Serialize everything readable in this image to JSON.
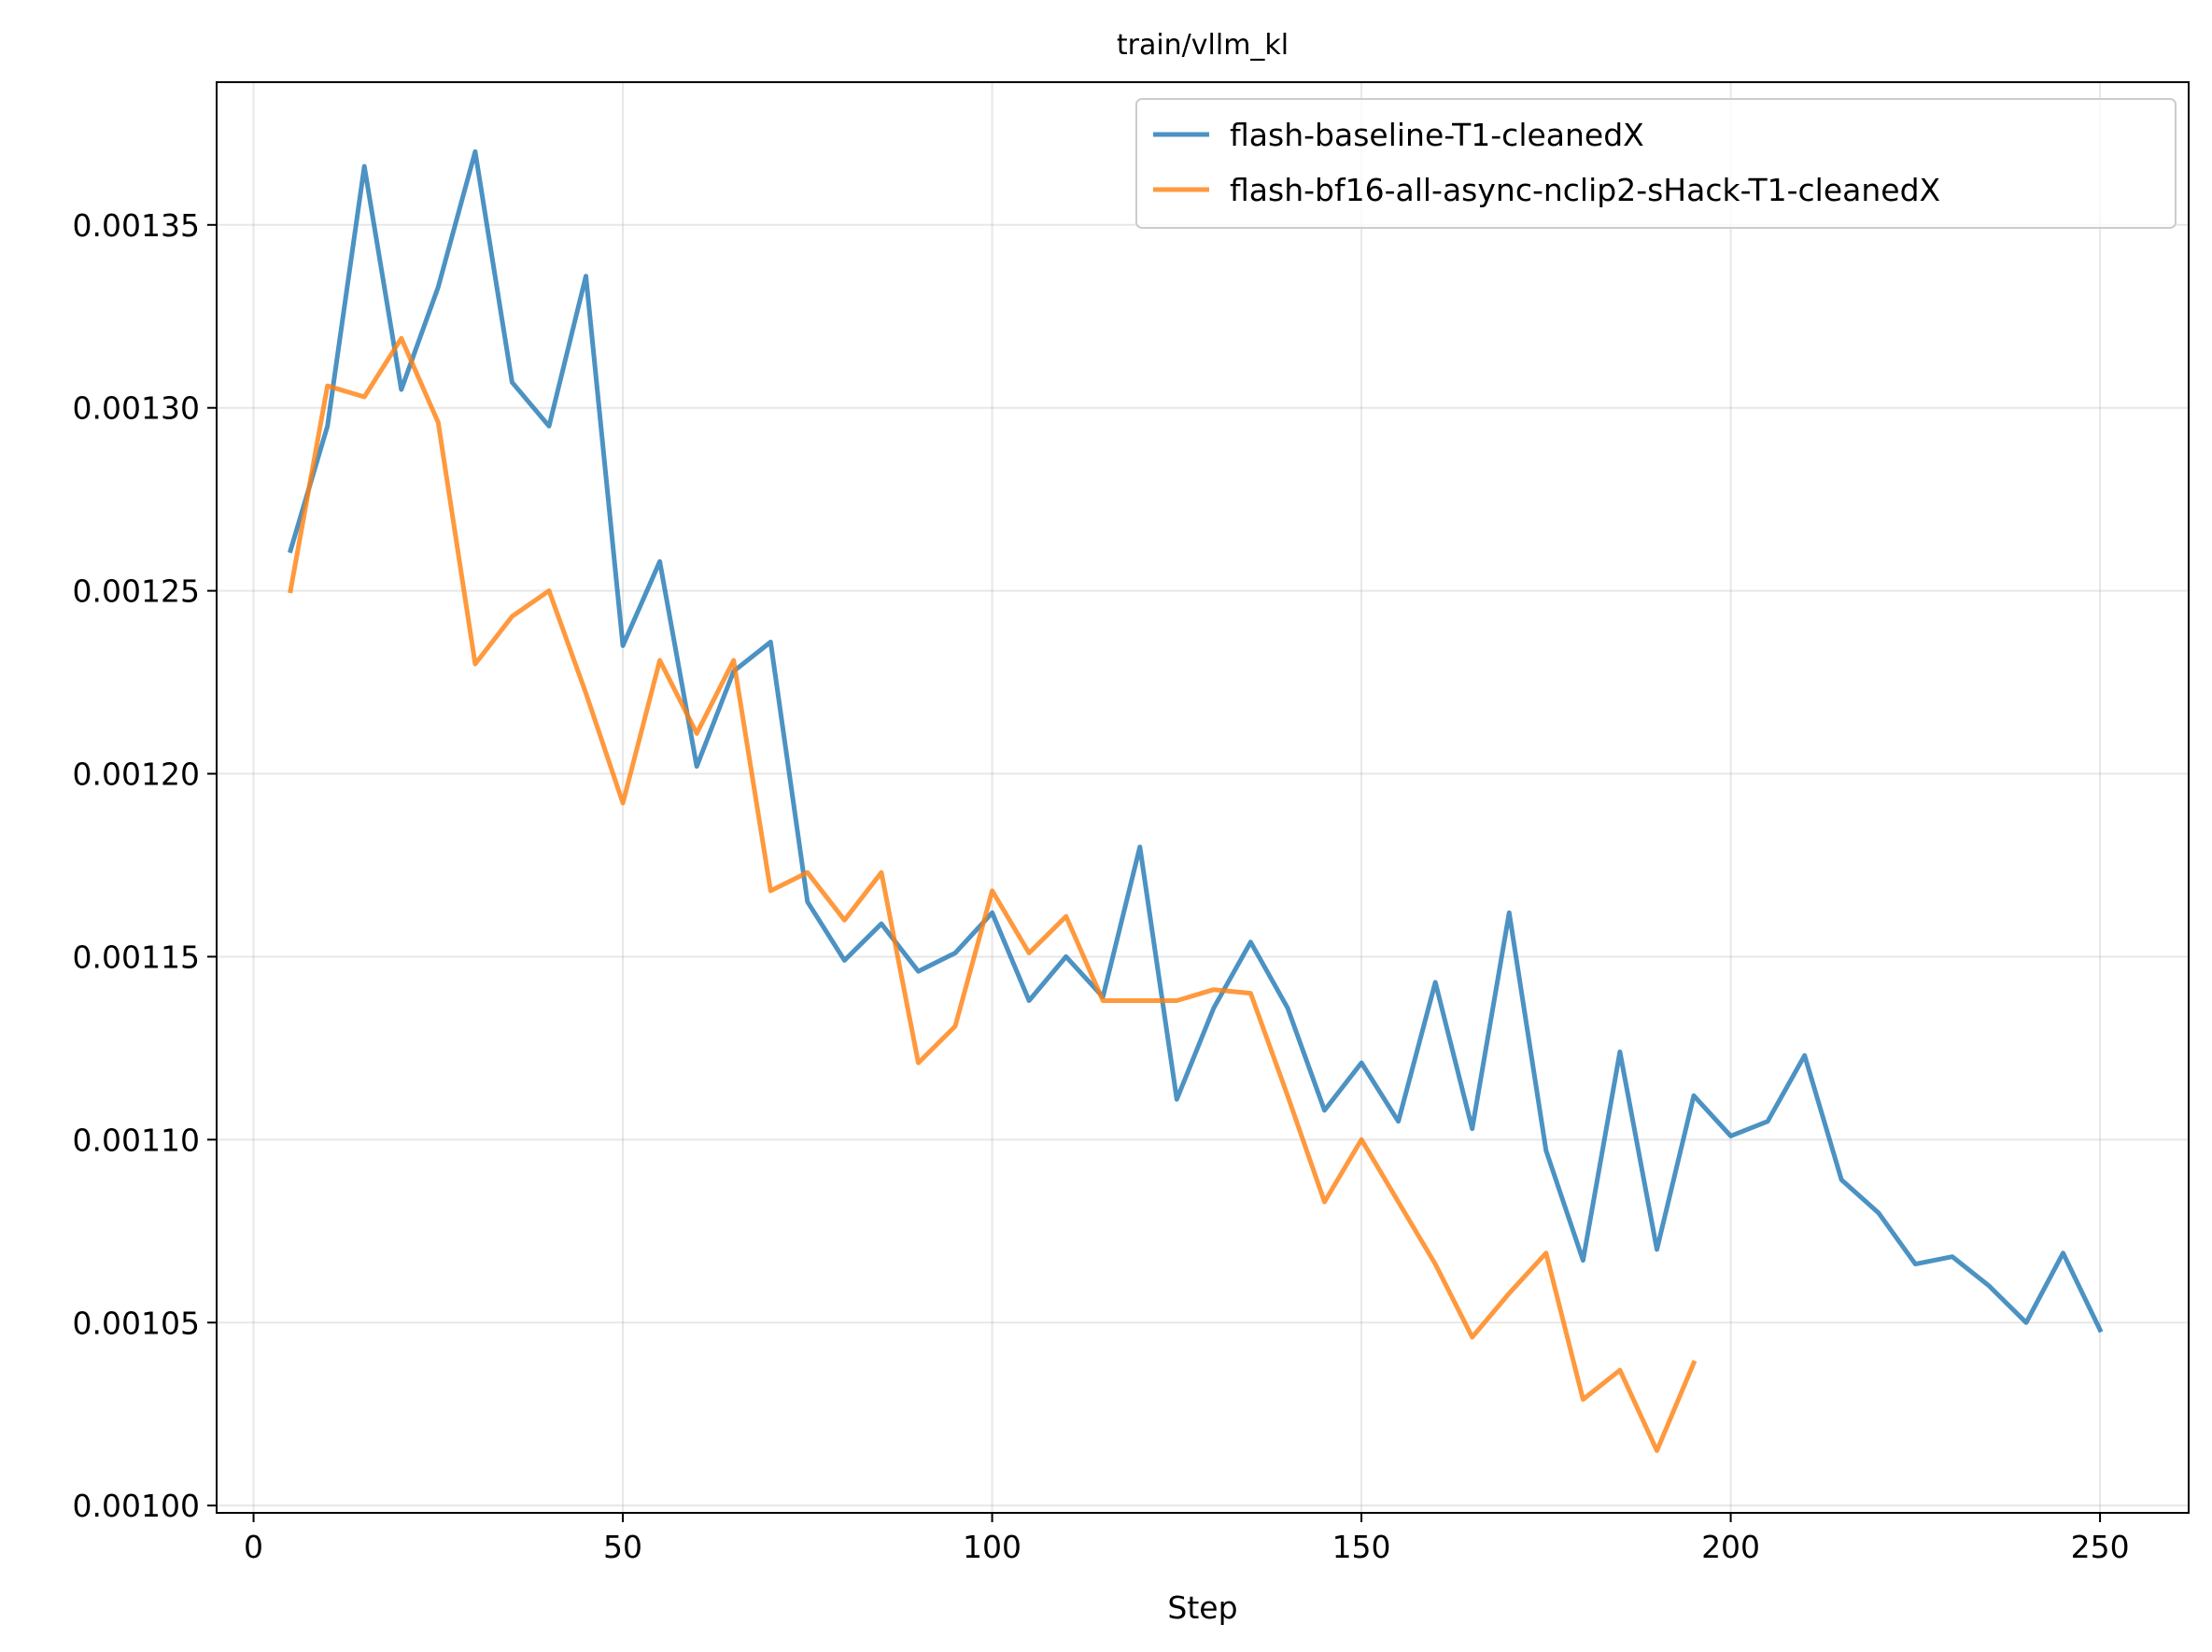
{
  "chart_data": {
    "type": "line",
    "title": "train/vllm_kl",
    "xlabel": "Step",
    "ylabel": "",
    "xlim": [
      -5,
      262
    ],
    "ylim": [
      0.000998,
      0.001389
    ],
    "xticks": [
      0,
      50,
      100,
      150,
      200,
      250
    ],
    "xtick_labels": [
      "0",
      "50",
      "100",
      "150",
      "200",
      "250"
    ],
    "yticks": [
      0.001,
      0.00105,
      0.0011,
      0.00115,
      0.0012,
      0.00125,
      0.0013,
      0.00135
    ],
    "ytick_labels": [
      "0.00100",
      "0.00105",
      "0.00110",
      "0.00115",
      "0.00120",
      "0.00125",
      "0.00130",
      "0.00135"
    ],
    "grid": true,
    "legend_position": "upper right",
    "series": [
      {
        "name": "flash-baseline-T1-cleanedX",
        "color": "#1f77b4",
        "x": [
          5,
          10,
          15,
          20,
          25,
          30,
          35,
          40,
          45,
          50,
          55,
          60,
          65,
          70,
          75,
          80,
          85,
          90,
          95,
          100,
          105,
          110,
          115,
          120,
          125,
          130,
          135,
          140,
          145,
          150,
          155,
          160,
          165,
          170,
          175,
          180,
          185,
          190,
          195,
          200,
          205,
          210,
          215,
          220,
          225,
          230,
          235,
          240,
          245,
          250
        ],
        "y": [
          0.001261,
          0.001295,
          0.001366,
          0.001305,
          0.001333,
          0.00137,
          0.001307,
          0.001295,
          0.001336,
          0.001235,
          0.001258,
          0.001202,
          0.001228,
          0.001236,
          0.001165,
          0.001149,
          0.001159,
          0.001146,
          0.001151,
          0.001162,
          0.001138,
          0.00115,
          0.001139,
          0.00118,
          0.001111,
          0.001136,
          0.001154,
          0.001136,
          0.001108,
          0.001121,
          0.001105,
          0.001143,
          0.001103,
          0.001162,
          0.001097,
          0.001067,
          0.001124,
          0.00107,
          0.001112,
          0.001101,
          0.001105,
          0.001123,
          0.001089,
          0.00108,
          0.001066,
          0.001068,
          0.00106,
          0.00105,
          0.001069,
          0.001048
        ]
      },
      {
        "name": "flash-bf16-all-async-nclip2-sHack-T1-cleanedX",
        "color": "#ff7f0e",
        "x": [
          5,
          10,
          15,
          20,
          25,
          30,
          35,
          40,
          45,
          50,
          55,
          60,
          65,
          70,
          75,
          80,
          85,
          90,
          95,
          100,
          105,
          110,
          115,
          120,
          125,
          130,
          135,
          140,
          145,
          150,
          155,
          160,
          165,
          170,
          175,
          180,
          185,
          190,
          195
        ],
        "y": [
          0.00125,
          0.001306,
          0.001303,
          0.001319,
          0.001296,
          0.00123,
          0.001243,
          0.00125,
          0.001222,
          0.001192,
          0.001231,
          0.001211,
          0.001231,
          0.001168,
          0.001173,
          0.00116,
          0.001173,
          0.001121,
          0.001131,
          0.001168,
          0.001151,
          0.001161,
          0.001138,
          0.001138,
          0.001138,
          0.001141,
          0.00114,
          0.001112,
          0.001083,
          0.0011,
          0.001083,
          0.001066,
          0.001046,
          0.001058,
          0.001069,
          0.001029,
          0.001037,
          0.001015,
          0.001039
        ]
      }
    ]
  }
}
